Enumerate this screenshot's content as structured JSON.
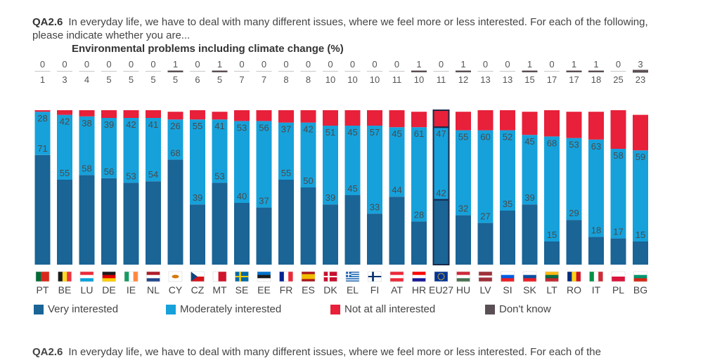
{
  "question": {
    "code": "QA2.6",
    "text": "In everyday life, we have to deal with many different issues, where we feel more or less interested. For each of the following, please indicate whether you are...",
    "subtitle": "Environmental problems including climate change (%)"
  },
  "footer": {
    "code": "QA2.6",
    "text": "In everyday life, we have to deal with many different issues, where we feel more or less interested. For each of the"
  },
  "colors": {
    "very": "#1a6496",
    "moderately": "#16a1db",
    "not_at_all": "#e8203a",
    "dont_know": "#5a4f55"
  },
  "chart_data": {
    "type": "bar",
    "stacked": true,
    "categories": [
      "PT",
      "BE",
      "LU",
      "DE",
      "IE",
      "NL",
      "CY",
      "CZ",
      "MT",
      "SE",
      "EE",
      "FR",
      "ES",
      "DK",
      "EL",
      "FI",
      "AT",
      "HR",
      "EU27",
      "HU",
      "LV",
      "SI",
      "SK",
      "LT",
      "RO",
      "IT",
      "PL",
      "BG"
    ],
    "highlight_category": "EU27",
    "series": [
      {
        "name": "Very interested",
        "values": [
          71,
          55,
          58,
          56,
          53,
          54,
          68,
          39,
          53,
          40,
          37,
          55,
          50,
          39,
          45,
          33,
          44,
          28,
          42,
          32,
          27,
          35,
          39,
          15,
          29,
          18,
          17,
          15
        ]
      },
      {
        "name": "Moderately interested",
        "values": [
          28,
          42,
          38,
          39,
          42,
          41,
          26,
          55,
          41,
          53,
          56,
          37,
          42,
          51,
          45,
          57,
          45,
          61,
          47,
          55,
          60,
          52,
          45,
          68,
          53,
          63,
          58,
          59
        ]
      },
      {
        "name": "Not at all interested",
        "values": [
          1,
          3,
          4,
          5,
          5,
          5,
          5,
          6,
          5,
          7,
          7,
          8,
          8,
          10,
          10,
          10,
          11,
          10,
          11,
          12,
          13,
          13,
          15,
          17,
          17,
          18,
          25,
          23
        ]
      },
      {
        "name": "Don't know",
        "values": [
          0,
          0,
          0,
          0,
          0,
          0,
          1,
          0,
          1,
          0,
          0,
          0,
          0,
          0,
          0,
          0,
          0,
          1,
          0,
          1,
          0,
          0,
          1,
          0,
          1,
          1,
          0,
          3
        ]
      }
    ],
    "legend_position": "bottom",
    "ylim": [
      0,
      100
    ],
    "grid": false
  }
}
